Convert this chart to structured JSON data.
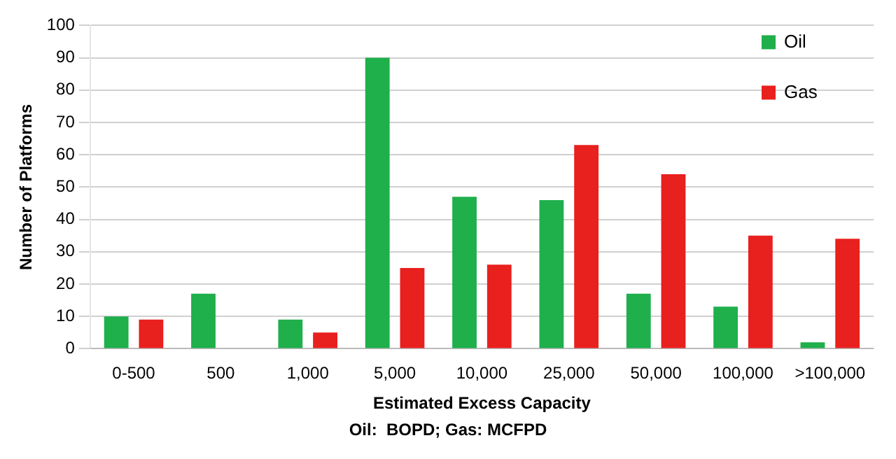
{
  "chart_data": {
    "type": "bar",
    "categories": [
      "0-500",
      "500",
      "1,000",
      "5,000",
      "10,000",
      "25,000",
      "50,000",
      "100,000",
      ">100,000"
    ],
    "series": [
      {
        "name": "Oil",
        "color": "#1faf4b",
        "values": [
          10,
          17,
          9,
          90,
          47,
          46,
          17,
          13,
          2
        ]
      },
      {
        "name": "Gas",
        "color": "#e8201e",
        "values": [
          9,
          0,
          5,
          25,
          26,
          63,
          54,
          35,
          34
        ]
      }
    ],
    "xlabel": "Estimated Excess Capacity",
    "ylabel": "Number of Platforms",
    "annotations": [
      "Oil:  BOPD; Gas: MCFPD"
    ],
    "ylim": [
      0,
      100
    ],
    "yticks": [
      0,
      10,
      20,
      30,
      40,
      50,
      60,
      70,
      80,
      90,
      100
    ],
    "grid": "y",
    "legend": "top right"
  }
}
